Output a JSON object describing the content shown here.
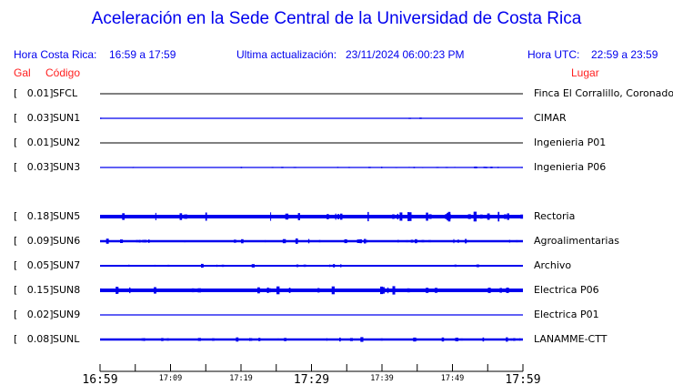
{
  "header": {
    "title": "Aceleración en la Sede Central de la Universidad de Costa Rica",
    "local_label": "Hora Costa Rica:",
    "local_range": "16:59 a 17:59",
    "update_label": "Ultima actualización:",
    "update_value": "23/11/2024 06:00:23 PM",
    "utc_label": "Hora UTC:",
    "utc_range": "22:59 a 23:59",
    "col_gal": "Gal",
    "col_code": "Código",
    "col_place": "Lugar"
  },
  "colors": {
    "trace": "#0000ee",
    "accent": "#ff2020",
    "flat_trace": "#000000"
  },
  "chart_data": {
    "type": "line",
    "title": "Aceleración en la Sede Central de la Universidad de Costa Rica",
    "xlabel": "",
    "ylabel": "",
    "x_ticks": [
      "16:59",
      "",
      "17:09",
      "",
      "17:19",
      "",
      "17:29",
      "",
      "17:39",
      "",
      "17:49",
      "",
      "17:59"
    ],
    "x_major": [
      "16:59",
      "17:29",
      "17:59"
    ],
    "xlim": [
      "16:59",
      "17:59"
    ],
    "stations": [
      {
        "gal": "[   0.01]",
        "code": "SFCL",
        "place": "Finca El Corralillo, Coronado",
        "peak": 0.01,
        "flat": true
      },
      {
        "gal": "[   0.03]",
        "code": "SUN1",
        "place": "CIMAR",
        "peak": 0.03,
        "flat": false
      },
      {
        "gal": "[   0.01]",
        "code": "SUN2",
        "place": "Ingenieria P01",
        "peak": 0.01,
        "flat": true
      },
      {
        "gal": "[   0.03]",
        "code": "SUN3",
        "place": "Ingenieria P06",
        "peak": 0.03,
        "flat": false
      },
      null,
      {
        "gal": "[   0.18]",
        "code": "SUN5",
        "place": "Rectoria",
        "peak": 0.18,
        "flat": false
      },
      {
        "gal": "[   0.09]",
        "code": "SUN6",
        "place": "Agroalimentarias",
        "peak": 0.09,
        "flat": false
      },
      {
        "gal": "[   0.05]",
        "code": "SUN7",
        "place": "Archivo",
        "peak": 0.05,
        "flat": false
      },
      {
        "gal": "[   0.15]",
        "code": "SUN8",
        "place": "Electrica P06",
        "peak": 0.15,
        "flat": false
      },
      {
        "gal": "[   0.02]",
        "code": "SUN9",
        "place": "Electrica P01",
        "peak": 0.02,
        "flat": false
      },
      {
        "gal": "[   0.08]",
        "code": "SUNL",
        "place": "LANAMME-CTT",
        "peak": 0.08,
        "flat": false
      }
    ]
  }
}
